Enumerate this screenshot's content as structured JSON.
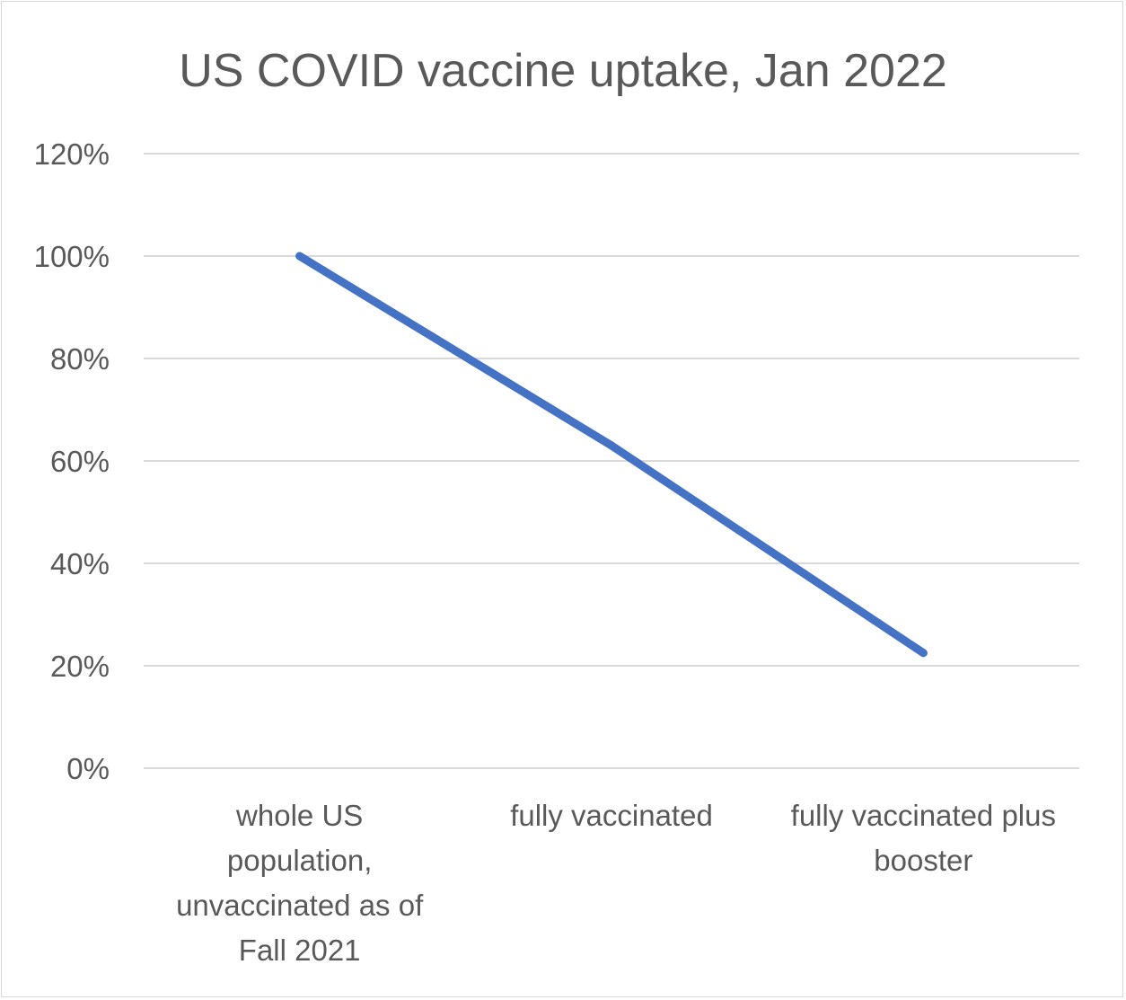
{
  "chart_data": {
    "type": "line",
    "title": "US COVID vaccine uptake, Jan 2022",
    "xlabel": "",
    "ylabel": "",
    "categories": [
      "whole US population, unvaccinated as of Fall 2021",
      "fully vaccinated",
      "fully vaccinated plus booster"
    ],
    "category_lines": [
      [
        "whole US",
        "population,",
        "unvaccinated as of",
        "Fall 2021"
      ],
      [
        "fully vaccinated"
      ],
      [
        "fully vaccinated plus",
        "booster"
      ]
    ],
    "series": [
      {
        "values": [
          1.0,
          0.63,
          0.225
        ]
      }
    ],
    "ylim": [
      0,
      1.2
    ],
    "yticks": [
      0,
      0.2,
      0.4,
      0.6,
      0.8,
      1.0,
      1.2
    ],
    "ytick_labels": [
      "0%",
      "20%",
      "40%",
      "60%",
      "80%",
      "100%",
      "120%"
    ],
    "grid": true,
    "legend": "none",
    "colors": {
      "line": "#4472c4",
      "grid": "#d9d9d9",
      "text": "#595959",
      "border": "#d9d9d9"
    }
  }
}
